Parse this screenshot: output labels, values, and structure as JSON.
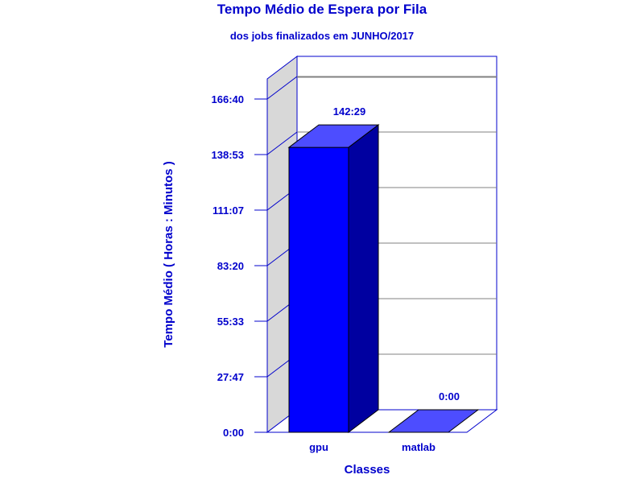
{
  "chart_data": {
    "type": "bar",
    "title": "Tempo Médio de Espera por Fila",
    "subtitle": "dos jobs finalizados em JUNHO/2017",
    "xlabel": "Classes",
    "ylabel": "Tempo Médio ( Horas : Minutos )",
    "categories": [
      "gpu",
      "matlab"
    ],
    "values": [
      8549,
      0
    ],
    "value_labels": [
      "142:29",
      "0:00"
    ],
    "y_ticks": [
      0,
      1667,
      3333,
      5000,
      6667,
      8333,
      10000
    ],
    "y_tick_labels": [
      "0:00",
      "27:47",
      "55:33",
      "83:20",
      "111:07",
      "138:53",
      "166:40"
    ],
    "ylim": [
      0,
      10000
    ],
    "unit": "minutes",
    "grid": true,
    "colors": {
      "bar_front": "#0000ff",
      "bar_top": "#4d4dff",
      "bar_side": "#0000a0",
      "axis": "#0000cc",
      "grid": "#808080",
      "wall": "#d8d8d8",
      "text": "#0000cc"
    }
  }
}
